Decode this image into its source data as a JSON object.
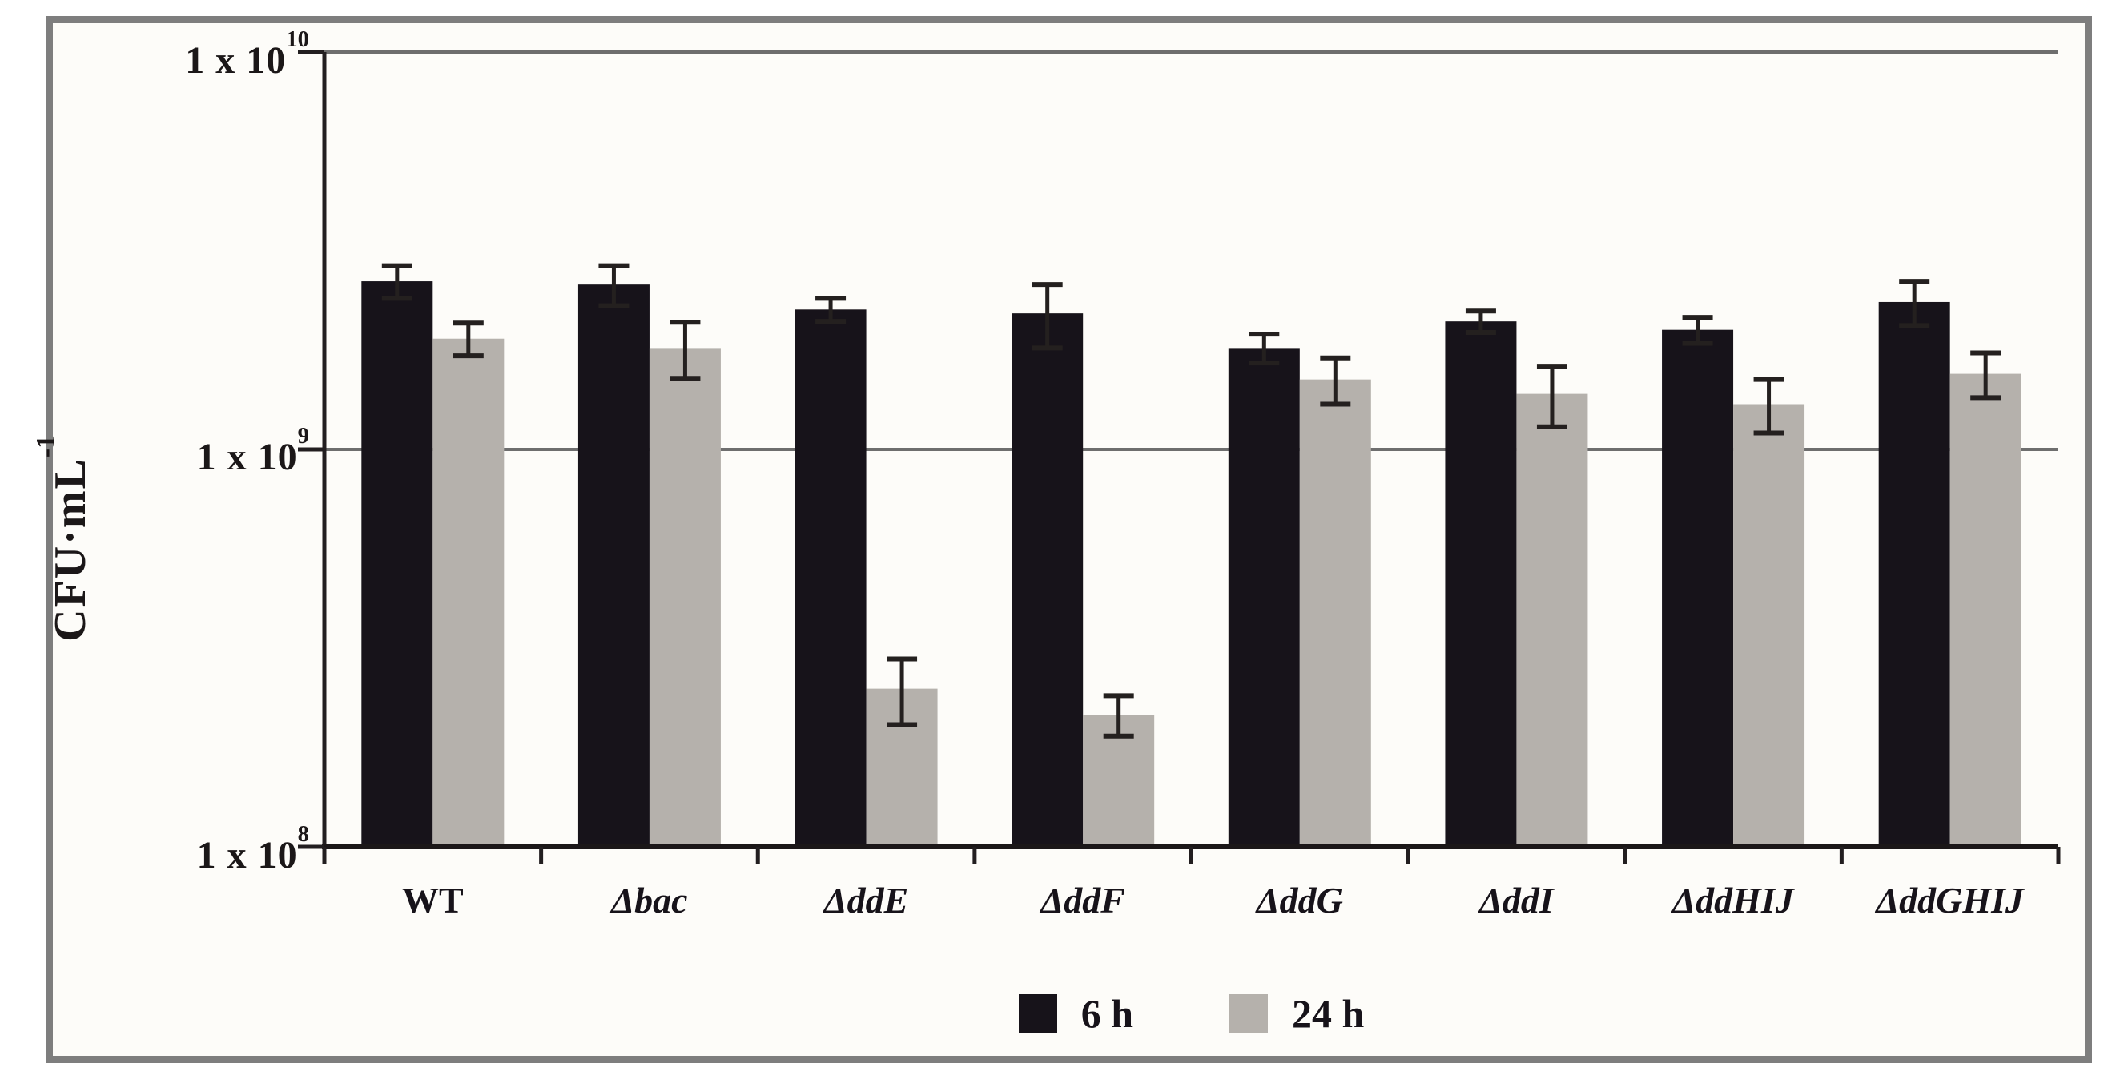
{
  "figure": {
    "background_outer": "#ffffff",
    "background_inner": "#fdfcf9",
    "frame_color": "#7e7e7e",
    "gridline_color": "#6e6e6e",
    "axis_color": "#221e20",
    "error_bar_color": "#24201f"
  },
  "y_axis": {
    "label_base": "CFU·mL",
    "label_sup": "-1",
    "ticks": [
      {
        "base": "1 x 10",
        "sup": "10",
        "value": 10000000000.0
      },
      {
        "base": "1 x 10",
        "sup": "9",
        "value": 1000000000.0
      },
      {
        "base": "1 x 10",
        "sup": "8",
        "value": 100000000.0
      }
    ]
  },
  "x_axis": {
    "categories": [
      {
        "label": "WT",
        "italic": false
      },
      {
        "label": "Δbac",
        "italic": true
      },
      {
        "label": "ΔddE",
        "italic": true
      },
      {
        "label": "ΔddF",
        "italic": true
      },
      {
        "label": "ΔddG",
        "italic": true
      },
      {
        "label": "ΔddI",
        "italic": true
      },
      {
        "label": "ΔddHIJ",
        "italic": true
      },
      {
        "label": "ΔddGHIJ",
        "italic": true
      }
    ]
  },
  "legend": {
    "items": [
      {
        "label": "6 h",
        "color": "#17131a"
      },
      {
        "label": "24 h",
        "color": "#b5b1ac"
      }
    ]
  },
  "chart_data": {
    "type": "bar",
    "y_scale": "log",
    "title": "",
    "xlabel": "",
    "ylabel": "CFU·mL^-1",
    "ylim": [
      100000000.0,
      10000000000.0
    ],
    "gridlines": [
      1000000000.0,
      10000000000.0
    ],
    "grid": true,
    "legend_position": "bottom",
    "categories": [
      "WT",
      "Δbac",
      "ΔddE",
      "ΔddF",
      "ΔddG",
      "ΔddI",
      "ΔddHIJ",
      "ΔddGHIJ"
    ],
    "series": [
      {
        "name": "6 h",
        "color": "#17131a",
        "values": [
          2650000000.0,
          2600000000.0,
          2250000000.0,
          2200000000.0,
          1800000000.0,
          2100000000.0,
          2000000000.0,
          2350000000.0
        ],
        "errors": [
          250000000.0,
          300000000.0,
          150000000.0,
          400000000.0,
          150000000.0,
          130000000.0,
          150000000.0,
          300000000.0
        ]
      },
      {
        "name": "24 h",
        "color": "#b5b1ac",
        "values": [
          1900000000.0,
          1800000000.0,
          250000000.0,
          215000000.0,
          1500000000.0,
          1380000000.0,
          1300000000.0,
          1550000000.0
        ],
        "errors": [
          180000000.0,
          290000000.0,
          47000000.0,
          25000000.0,
          200000000.0,
          240000000.0,
          200000000.0,
          200000000.0
        ]
      }
    ]
  }
}
